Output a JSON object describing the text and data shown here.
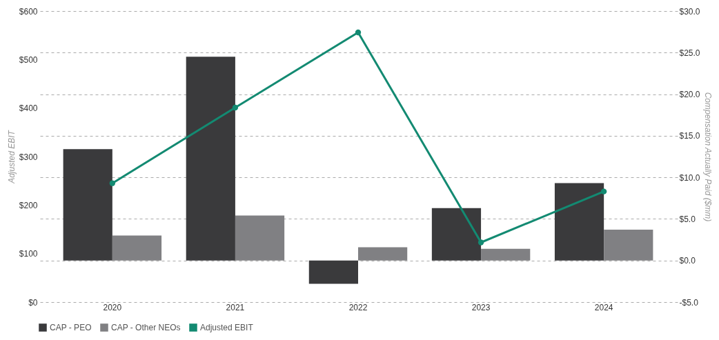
{
  "chart_data": {
    "type": "bar",
    "categories": [
      "2020",
      "2021",
      "2022",
      "2023",
      "2024"
    ],
    "ylabel": "Adjusted EBIT",
    "y2label": "Compensation Actually Paid ($mm)",
    "series": [
      {
        "name": "CAP - PEO",
        "color": "#3a3a3c",
        "axis": "y2",
        "values": [
          13.4,
          24.5,
          -2.8,
          6.3,
          9.3
        ]
      },
      {
        "name": "CAP - Other NEOs",
        "color": "#808083",
        "axis": "y2",
        "values": [
          3.0,
          5.4,
          1.6,
          1.4,
          3.7
        ]
      },
      {
        "name": "Adjusted EBIT",
        "type": "line",
        "color": "#138a72",
        "marker": "circle",
        "values": [
          245,
          401,
          556,
          123,
          228
        ]
      }
    ],
    "ylim": [
      0,
      600
    ],
    "yticks": [
      {
        "value": 0,
        "label": "$0"
      },
      {
        "value": 100,
        "label": "$100"
      },
      {
        "value": 200,
        "label": "$200"
      },
      {
        "value": 300,
        "label": "$300"
      },
      {
        "value": 400,
        "label": "$400"
      },
      {
        "value": 500,
        "label": "$500"
      },
      {
        "value": 600,
        "label": "$600"
      }
    ],
    "y2lim": [
      -5,
      30
    ],
    "y2ticks": [
      {
        "value": -5,
        "label": "-$5.0"
      },
      {
        "value": 0,
        "label": "$0.0"
      },
      {
        "value": 5,
        "label": "$5.0"
      },
      {
        "value": 10,
        "label": "$10.0"
      },
      {
        "value": 15,
        "label": "$15.0"
      },
      {
        "value": 20,
        "label": "$20.0"
      },
      {
        "value": 25,
        "label": "$25.0"
      },
      {
        "value": 30,
        "label": "$30.0"
      }
    ],
    "grid": true,
    "legend": "bottom",
    "line_style": "solid"
  }
}
